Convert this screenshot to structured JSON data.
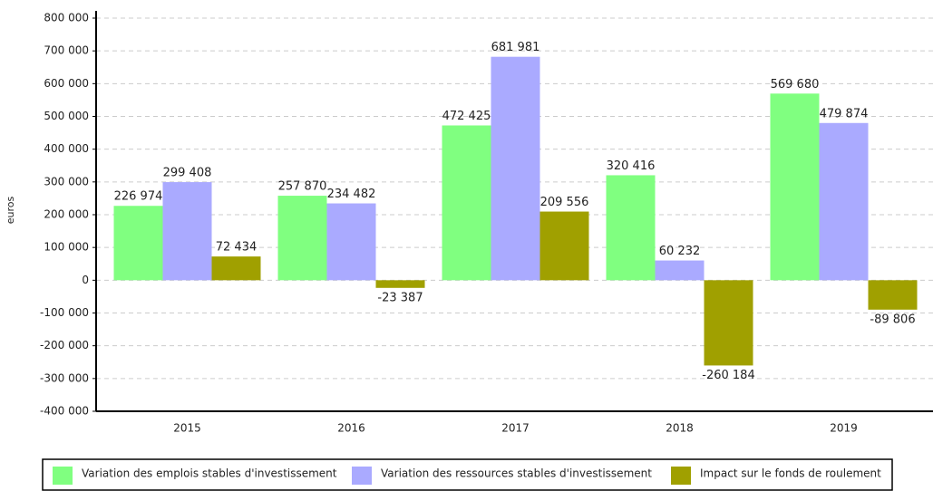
{
  "chart_data": {
    "type": "bar",
    "y_label": "euros",
    "categories": [
      "2015",
      "2016",
      "2017",
      "2018",
      "2019"
    ],
    "series": [
      {
        "name": "Variation des emplois stables d'investissement",
        "color": "#80ff80",
        "values": [
          226974,
          257870,
          472425,
          320416,
          569680
        ],
        "value_labels": [
          "226 974",
          "257 870",
          "472 425",
          "320 416",
          "569 680"
        ]
      },
      {
        "name": "Variation des ressources stables d'investissement",
        "color": "#aaaaff",
        "values": [
          299408,
          234482,
          681981,
          60232,
          479874
        ],
        "value_labels": [
          "299 408",
          "234 482",
          "681 981",
          "60 232",
          "479 874"
        ]
      },
      {
        "name": "Impact sur le fonds de roulement",
        "color": "#a0a000",
        "values": [
          72434,
          -23387,
          209556,
          -260184,
          -89806
        ],
        "value_labels": [
          "72 434",
          "-23 387",
          "209 556",
          "-260 184",
          "-89 806"
        ]
      }
    ],
    "ylim": [
      -400000,
      800000
    ],
    "yticks": [
      {
        "value": -400000,
        "label": "-400 000"
      },
      {
        "value": -300000,
        "label": "-300 000"
      },
      {
        "value": -200000,
        "label": "-200 000"
      },
      {
        "value": -100000,
        "label": "-100 000"
      },
      0,
      {
        "value": 100000,
        "label": "100 000"
      },
      {
        "value": 200000,
        "label": "200 000"
      },
      {
        "value": 300000,
        "label": "300 000"
      },
      {
        "value": 400000,
        "label": "400 000"
      },
      {
        "value": 500000,
        "label": "500 000"
      },
      {
        "value": 600000,
        "label": "600 000"
      },
      {
        "value": 700000,
        "label": "700 000"
      },
      {
        "value": 800000,
        "label": "800 000"
      }
    ],
    "grid": true,
    "legend": "bottom"
  }
}
